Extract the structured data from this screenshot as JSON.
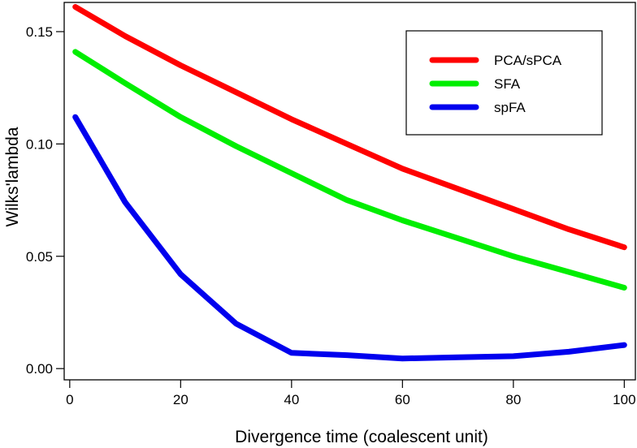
{
  "chart_data": {
    "type": "line",
    "xlabel": "Divergence time (coalescent unit)",
    "ylabel": "Wilks'lambda",
    "xlim": [
      -1,
      102
    ],
    "ylim": [
      -0.005,
      0.163
    ],
    "xticks": [
      0,
      20,
      40,
      60,
      80,
      100
    ],
    "yticks": [
      0.0,
      0.05,
      0.1,
      0.15
    ],
    "ytick_labels": [
      "0.00",
      "0.05",
      "0.10",
      "0.15"
    ],
    "grid": false,
    "legend_position": "top-right",
    "x": [
      1,
      10,
      20,
      30,
      40,
      50,
      60,
      70,
      80,
      90,
      100
    ],
    "series": [
      {
        "name": "PCA/sPCA",
        "color": "#ff0000",
        "values": [
          0.161,
          0.148,
          0.135,
          0.123,
          0.111,
          0.1,
          0.089,
          0.08,
          0.071,
          0.062,
          0.054
        ]
      },
      {
        "name": "SFA",
        "color": "#00ee00",
        "values": [
          0.141,
          0.127,
          0.112,
          0.099,
          0.087,
          0.075,
          0.066,
          0.058,
          0.05,
          0.043,
          0.036
        ]
      },
      {
        "name": "spFA",
        "color": "#0000ee",
        "values": [
          0.112,
          0.074,
          0.042,
          0.02,
          0.007,
          0.006,
          0.0045,
          0.005,
          0.0055,
          0.0075,
          0.0105
        ]
      }
    ]
  }
}
